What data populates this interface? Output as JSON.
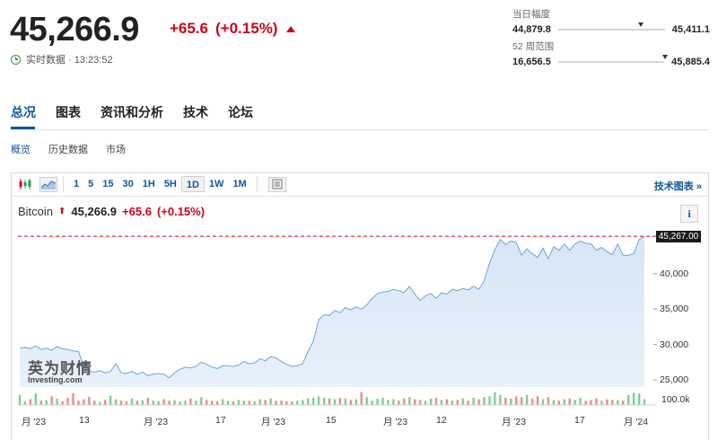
{
  "quote": {
    "price": "45,266.9",
    "change": "+65.6",
    "change_pct": "(+0.15%)",
    "realtime_label": "实时数据 · 13:23:52"
  },
  "day_range": {
    "label": "当日幅度",
    "low": "44,879.8",
    "high": "45,411.1",
    "position": 0.75
  },
  "week52_range": {
    "label": "52 周范围",
    "low": "16,656.5",
    "high": "45,885.4",
    "position": 0.98
  },
  "tabs": [
    "总况",
    "图表",
    "资讯和分析",
    "技术",
    "论坛"
  ],
  "subtabs": [
    "概览",
    "历史数据",
    "市场"
  ],
  "toolbar": {
    "intervals": [
      "1",
      "5",
      "15",
      "30",
      "1H",
      "5H",
      "1D",
      "1W",
      "1M"
    ],
    "selected_interval": "1D",
    "tech_chart_link": "技术图表 »"
  },
  "legend": {
    "name": "Bitcoin",
    "value": "45,266.9",
    "change": "+65.6",
    "change_pct": "(+0.15%)"
  },
  "info_button": "i",
  "watermark": {
    "cn": "英为财情",
    "en": "Investing.com"
  },
  "colors": {
    "accent": "#1256a0",
    "negative": "#d0021b",
    "positive": "#2a9d4b"
  },
  "chart_data": {
    "type": "area",
    "series": [
      {
        "values": [
          29500,
          29600,
          29400,
          29800,
          29300,
          29500,
          29200,
          29700,
          29400,
          29300,
          29100,
          29000,
          27000,
          26200,
          26100,
          26300,
          26000,
          26200,
          27300,
          26000,
          25900,
          26200,
          25800,
          26100,
          25600,
          25800,
          25900,
          25800,
          25300,
          26000,
          26500,
          26800,
          26700,
          26900,
          27500,
          27200,
          26800,
          26600,
          27000,
          27000,
          26900,
          27100,
          27600,
          27300,
          27400,
          28000,
          27700,
          28300,
          28100,
          27600,
          27200,
          26900,
          27000,
          27300,
          29000,
          30500,
          33500,
          34200,
          34100,
          34800,
          34500,
          35200,
          34900,
          35300,
          35000,
          35600,
          36500,
          37200,
          37400,
          37500,
          37800,
          37600,
          37300,
          38200,
          37100,
          36200,
          36900,
          37200,
          36500,
          37300,
          37100,
          37800,
          37600,
          37900,
          37700,
          38200,
          37800,
          39000,
          41500,
          43400,
          44800,
          44100,
          44600,
          44400,
          42600,
          43500,
          42800,
          42300,
          43600,
          42100,
          43800,
          43300,
          44200,
          43300,
          44200,
          44600,
          44300,
          44200,
          43300,
          43700,
          43100,
          42700,
          44200,
          42600,
          42600,
          42800,
          44800,
          45267
        ],
        "volumes": [
          0.7,
          0.25,
          0.4,
          0.8,
          0.3,
          0.35,
          0.6,
          0.45,
          0.25,
          0.5,
          0.8,
          0.3,
          0.4,
          0.55,
          0.3,
          0.2,
          0.35,
          0.65,
          0.4,
          0.3,
          0.25,
          0.45,
          0.3,
          0.35,
          0.5,
          0.3,
          0.25,
          0.4,
          0.3,
          0.35,
          0.25,
          0.3,
          0.45,
          0.3,
          0.55,
          0.35,
          0.3,
          0.25,
          0.4,
          0.3,
          0.25,
          0.35,
          0.3,
          0.3,
          0.25,
          0.4,
          0.35,
          0.45,
          0.3,
          0.3,
          0.25,
          0.25,
          0.3,
          0.35,
          0.45,
          0.5,
          0.6,
          0.5,
          0.45,
          0.4,
          0.5,
          0.45,
          0.35,
          0.4,
          0.9,
          0.55,
          0.3,
          0.45,
          0.5,
          0.35,
          0.4,
          0.3,
          0.45,
          0.55,
          0.4,
          0.35,
          0.3,
          0.45,
          0.5,
          0.35,
          0.4,
          0.3,
          0.35,
          0.45,
          0.3,
          0.5,
          0.4,
          0.55,
          0.6,
          0.9,
          0.7,
          0.5,
          0.45,
          0.6,
          0.55,
          0.7,
          0.45,
          0.6,
          0.4,
          0.55,
          0.35,
          0.3,
          0.4,
          0.45,
          0.35,
          0.5,
          0.3,
          0.35,
          0.45,
          0.3,
          0.4,
          0.35,
          0.35,
          0.3,
          0.7,
          0.85,
          0.8,
          0.4
        ]
      }
    ],
    "x_tick_labels": [
      "月 '23",
      "13",
      "月 '23",
      "17",
      "月 '23",
      "15",
      "月 '23",
      "12",
      "月 '23",
      "17",
      "月 '24"
    ],
    "y_tick_labels": [
      "40,000",
      "35,000",
      "30,000",
      "25,000"
    ],
    "y_ticks": [
      40000,
      35000,
      30000,
      25000
    ],
    "ylim": [
      24000,
      46300
    ],
    "last_price_line": 45267,
    "last_price_label": "45,267.00",
    "volume_axis_label": "100.0k",
    "grid": false
  }
}
